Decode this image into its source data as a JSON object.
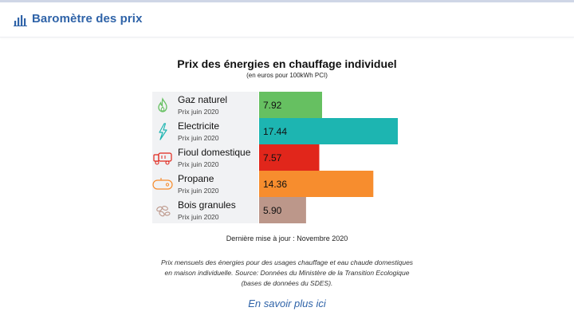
{
  "header": {
    "title": "Baromètre des prix",
    "icon": "bar-chart-icon",
    "accent_color": "#2f63a8"
  },
  "chart_data": {
    "type": "bar",
    "orientation": "horizontal",
    "title": "Prix des énergies en chauffage individuel",
    "subtitle": "(en euros pour 100kWh PCI)",
    "categories": [
      "Gaz naturel",
      "Electricite",
      "Fioul domestique",
      "Propane",
      "Bois granules"
    ],
    "sublabels": [
      "Prix juin 2020",
      "Prix juin 2020",
      "Prix juin 2020",
      "Prix juin 2020",
      "Prix juin 2020"
    ],
    "values": [
      7.92,
      17.44,
      7.57,
      14.36,
      5.9
    ],
    "value_labels": [
      "7.92",
      "17.44",
      "7.57",
      "14.36",
      "5.90"
    ],
    "colors": [
      "#66c061",
      "#1db5b1",
      "#e1261b",
      "#f78d2e",
      "#bc978a"
    ],
    "icons": [
      "flame-icon",
      "lightning-icon",
      "fuel-truck-icon",
      "gas-tank-icon",
      "wood-pellets-icon"
    ],
    "xlim": [
      0,
      17.44
    ],
    "grid": false,
    "legend": "none"
  },
  "footer": {
    "updated": "Dernière mise à jour : Novembre 2020",
    "description": "Prix mensuels des énergies pour des usages chauffage et eau chaude domestiques en maison individuelle. Source: Données du Ministère de la Transition Ecologique (bases de données du SDES).",
    "link_label": "En savoir plus ici"
  }
}
